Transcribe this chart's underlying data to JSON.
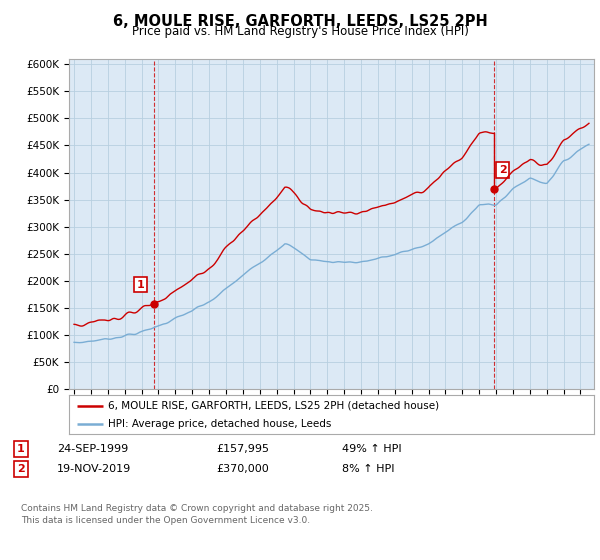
{
  "title": "6, MOULE RISE, GARFORTH, LEEDS, LS25 2PH",
  "subtitle": "Price paid vs. HM Land Registry's House Price Index (HPI)",
  "ylim": [
    0,
    600000
  ],
  "xlim_start": 1994.7,
  "xlim_end": 2025.8,
  "hpi_color": "#7aadd4",
  "price_color": "#cc0000",
  "chart_bg": "#dce9f5",
  "sale1_year": 1999.73,
  "sale1_price": 157995,
  "sale2_year": 2019.88,
  "sale2_price": 370000,
  "legend_label_red": "6, MOULE RISE, GARFORTH, LEEDS, LS25 2PH (detached house)",
  "legend_label_blue": "HPI: Average price, detached house, Leeds",
  "annotation1_label": "1",
  "annotation1_date": "24-SEP-1999",
  "annotation1_price": "£157,995",
  "annotation1_hpi": "49% ↑ HPI",
  "annotation2_label": "2",
  "annotation2_date": "19-NOV-2019",
  "annotation2_price": "£370,000",
  "annotation2_hpi": "8% ↑ HPI",
  "footer": "Contains HM Land Registry data © Crown copyright and database right 2025.\nThis data is licensed under the Open Government Licence v3.0.",
  "background_color": "#ffffff",
  "grid_color": "#b8cfe0"
}
